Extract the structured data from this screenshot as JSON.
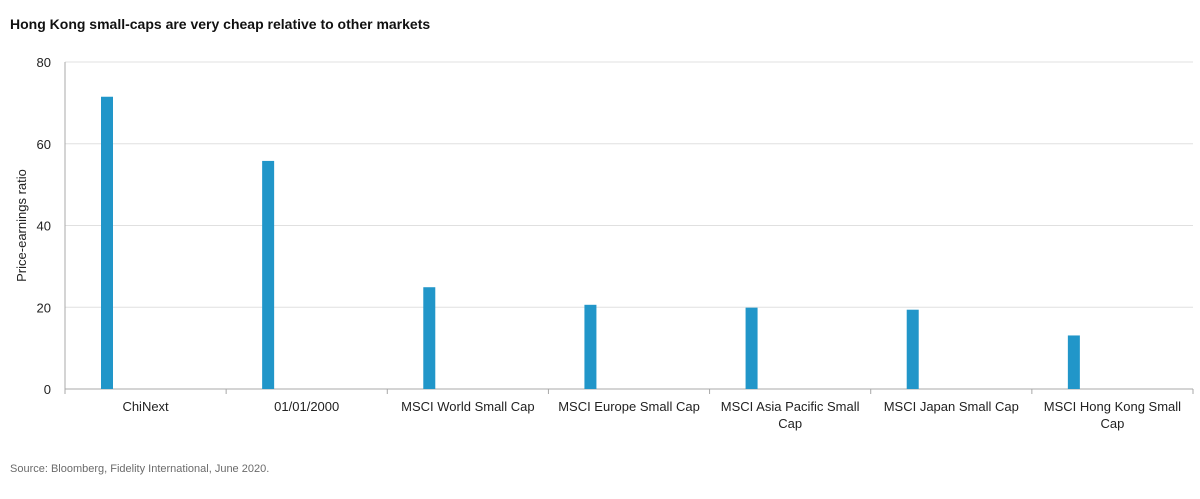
{
  "title": "Hong Kong small-caps are very cheap relative to other markets",
  "source": "Source: Bloomberg, Fidelity International, June 2020.",
  "colors": {
    "bar": "#2196c9",
    "grid": "#e0e0e0",
    "axis": "#a8a8a8"
  },
  "chart_data": {
    "type": "bar",
    "title": "Hong Kong small-caps are very cheap relative to other markets",
    "ylabel": "Price-earnings ratio",
    "xlabel": "",
    "ylim": [
      0,
      80
    ],
    "yticks": [
      0,
      20,
      40,
      60,
      80
    ],
    "grid": true,
    "categories": [
      [
        "ChiNext"
      ],
      [
        "01/01/2000"
      ],
      [
        "MSCI World Small Cap"
      ],
      [
        "MSCI Europe Small Cap"
      ],
      [
        "MSCI Asia Pacific Small",
        "Cap"
      ],
      [
        "MSCI Japan Small Cap"
      ],
      [
        "MSCI Hong Kong Small",
        "Cap"
      ]
    ],
    "values": [
      71.5,
      55.8,
      24.9,
      20.6,
      19.9,
      19.4,
      13.1
    ]
  }
}
